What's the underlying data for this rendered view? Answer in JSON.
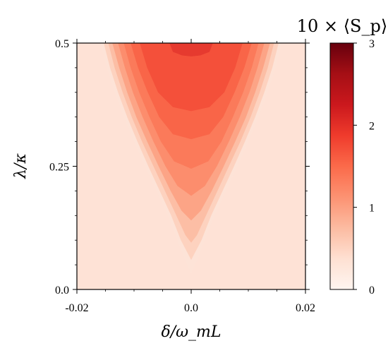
{
  "chart_data": {
    "type": "heatmap",
    "title": "",
    "xlabel": "δ/ω_mL",
    "ylabel": "λ/κ",
    "xlim": [
      -0.02,
      0.02
    ],
    "ylim": [
      0.0,
      0.5
    ],
    "x_ticks": [
      -0.02,
      0.0,
      0.02
    ],
    "x_tick_labels": [
      "-0.02",
      "0.0",
      "0.02"
    ],
    "y_ticks": [
      0.0,
      0.25,
      0.5
    ],
    "y_tick_labels": [
      "0.0",
      "0.25",
      "0.5"
    ],
    "colorbar": {
      "title": "10 × ⟨S_p⟩",
      "range": [
        0,
        3
      ],
      "ticks": [
        0,
        1,
        2,
        3
      ],
      "tick_labels": [
        "0",
        "1",
        "2",
        "3"
      ],
      "colormap": "Reds"
    },
    "background_value": 0.1,
    "contour_levels": [
      {
        "value": 0.3,
        "color": "#fde3d7",
        "boundary": [
          [
            -0.0159,
            0.5
          ],
          [
            -0.0148,
            0.45
          ],
          [
            -0.0134,
            0.4
          ],
          [
            -0.0118,
            0.35
          ],
          [
            -0.01,
            0.3
          ],
          [
            -0.0081,
            0.25
          ],
          [
            -0.0061,
            0.2
          ],
          [
            -0.0041,
            0.15
          ],
          [
            -0.0024,
            0.1
          ],
          [
            -0.0011,
            0.06
          ],
          [
            0.0,
            0.033
          ],
          [
            0.0011,
            0.06
          ],
          [
            0.0024,
            0.1
          ],
          [
            0.0041,
            0.15
          ],
          [
            0.0061,
            0.2
          ],
          [
            0.0081,
            0.25
          ],
          [
            0.01,
            0.3
          ],
          [
            0.0118,
            0.35
          ],
          [
            0.0134,
            0.4
          ],
          [
            0.0148,
            0.45
          ],
          [
            0.0159,
            0.5
          ]
        ]
      },
      {
        "value": 0.5,
        "color": "#fdd2bf",
        "boundary": [
          [
            -0.0153,
            0.5
          ],
          [
            -0.0142,
            0.45
          ],
          [
            -0.0128,
            0.4
          ],
          [
            -0.0112,
            0.35
          ],
          [
            -0.0094,
            0.3
          ],
          [
            -0.0075,
            0.25
          ],
          [
            -0.0055,
            0.2
          ],
          [
            -0.0035,
            0.15
          ],
          [
            -0.0018,
            0.1
          ],
          [
            0.0,
            0.06
          ],
          [
            0.0018,
            0.1
          ],
          [
            0.0035,
            0.15
          ],
          [
            0.0055,
            0.2
          ],
          [
            0.0075,
            0.25
          ],
          [
            0.0094,
            0.3
          ],
          [
            0.0112,
            0.35
          ],
          [
            0.0128,
            0.4
          ],
          [
            0.0142,
            0.45
          ],
          [
            0.0153,
            0.5
          ]
        ]
      },
      {
        "value": 0.75,
        "color": "#fcbea5",
        "boundary": [
          [
            -0.0145,
            0.5
          ],
          [
            -0.0134,
            0.45
          ],
          [
            -0.012,
            0.4
          ],
          [
            -0.0104,
            0.35
          ],
          [
            -0.0086,
            0.3
          ],
          [
            -0.0066,
            0.25
          ],
          [
            -0.0046,
            0.2
          ],
          [
            -0.0026,
            0.15
          ],
          [
            -0.001,
            0.11
          ],
          [
            0.0,
            0.095
          ],
          [
            0.001,
            0.11
          ],
          [
            0.0026,
            0.15
          ],
          [
            0.0046,
            0.2
          ],
          [
            0.0066,
            0.25
          ],
          [
            0.0086,
            0.3
          ],
          [
            0.0104,
            0.35
          ],
          [
            0.012,
            0.4
          ],
          [
            0.0134,
            0.45
          ],
          [
            0.0145,
            0.5
          ]
        ]
      },
      {
        "value": 1.0,
        "color": "#fca486",
        "boundary": [
          [
            -0.0138,
            0.5
          ],
          [
            -0.0126,
            0.45
          ],
          [
            -0.0112,
            0.4
          ],
          [
            -0.0096,
            0.35
          ],
          [
            -0.0077,
            0.3
          ],
          [
            -0.0057,
            0.25
          ],
          [
            -0.0036,
            0.2
          ],
          [
            -0.0017,
            0.16
          ],
          [
            0.0,
            0.14
          ],
          [
            0.0017,
            0.16
          ],
          [
            0.0036,
            0.2
          ],
          [
            0.0057,
            0.25
          ],
          [
            0.0077,
            0.3
          ],
          [
            0.0096,
            0.35
          ],
          [
            0.0112,
            0.4
          ],
          [
            0.0126,
            0.45
          ],
          [
            0.0138,
            0.5
          ]
        ]
      },
      {
        "value": 1.25,
        "color": "#fc8d6d",
        "boundary": [
          [
            -0.0128,
            0.5
          ],
          [
            -0.0116,
            0.45
          ],
          [
            -0.0102,
            0.4
          ],
          [
            -0.0085,
            0.35
          ],
          [
            -0.0066,
            0.3
          ],
          [
            -0.0045,
            0.25
          ],
          [
            -0.0024,
            0.21
          ],
          [
            0.0,
            0.19
          ],
          [
            0.0024,
            0.21
          ],
          [
            0.0045,
            0.25
          ],
          [
            0.0066,
            0.3
          ],
          [
            0.0085,
            0.35
          ],
          [
            0.0102,
            0.4
          ],
          [
            0.0116,
            0.45
          ],
          [
            0.0128,
            0.5
          ]
        ]
      },
      {
        "value": 1.5,
        "color": "#fb7a5a",
        "boundary": [
          [
            -0.0118,
            0.5
          ],
          [
            -0.0106,
            0.45
          ],
          [
            -0.0091,
            0.4
          ],
          [
            -0.0073,
            0.35
          ],
          [
            -0.0053,
            0.3
          ],
          [
            -0.003,
            0.26
          ],
          [
            0.0,
            0.245
          ],
          [
            0.003,
            0.26
          ],
          [
            0.0053,
            0.3
          ],
          [
            0.0073,
            0.35
          ],
          [
            0.0091,
            0.4
          ],
          [
            0.0106,
            0.45
          ],
          [
            0.0118,
            0.5
          ]
        ]
      },
      {
        "value": 1.75,
        "color": "#f96548",
        "boundary": [
          [
            -0.0106,
            0.5
          ],
          [
            -0.0093,
            0.45
          ],
          [
            -0.0076,
            0.4
          ],
          [
            -0.0056,
            0.35
          ],
          [
            -0.0032,
            0.315
          ],
          [
            0.0,
            0.305
          ],
          [
            0.0032,
            0.315
          ],
          [
            0.0056,
            0.35
          ],
          [
            0.0076,
            0.4
          ],
          [
            0.0093,
            0.45
          ],
          [
            0.0106,
            0.5
          ]
        ]
      },
      {
        "value": 2.0,
        "color": "#f4503a",
        "boundary": [
          [
            -0.009,
            0.5
          ],
          [
            -0.0077,
            0.45
          ],
          [
            -0.0058,
            0.4
          ],
          [
            -0.0032,
            0.37
          ],
          [
            0.0,
            0.362
          ],
          [
            0.0032,
            0.37
          ],
          [
            0.0058,
            0.4
          ],
          [
            0.0077,
            0.45
          ],
          [
            0.009,
            0.5
          ]
        ]
      },
      {
        "value": 2.25,
        "color": "#e63a2f",
        "boundary": [
          [
            -0.0038,
            0.5
          ],
          [
            -0.0032,
            0.482
          ],
          [
            -0.0016,
            0.475
          ],
          [
            0.0,
            0.473
          ],
          [
            0.0016,
            0.475
          ],
          [
            0.0032,
            0.482
          ],
          [
            0.0038,
            0.5
          ]
        ]
      }
    ]
  }
}
